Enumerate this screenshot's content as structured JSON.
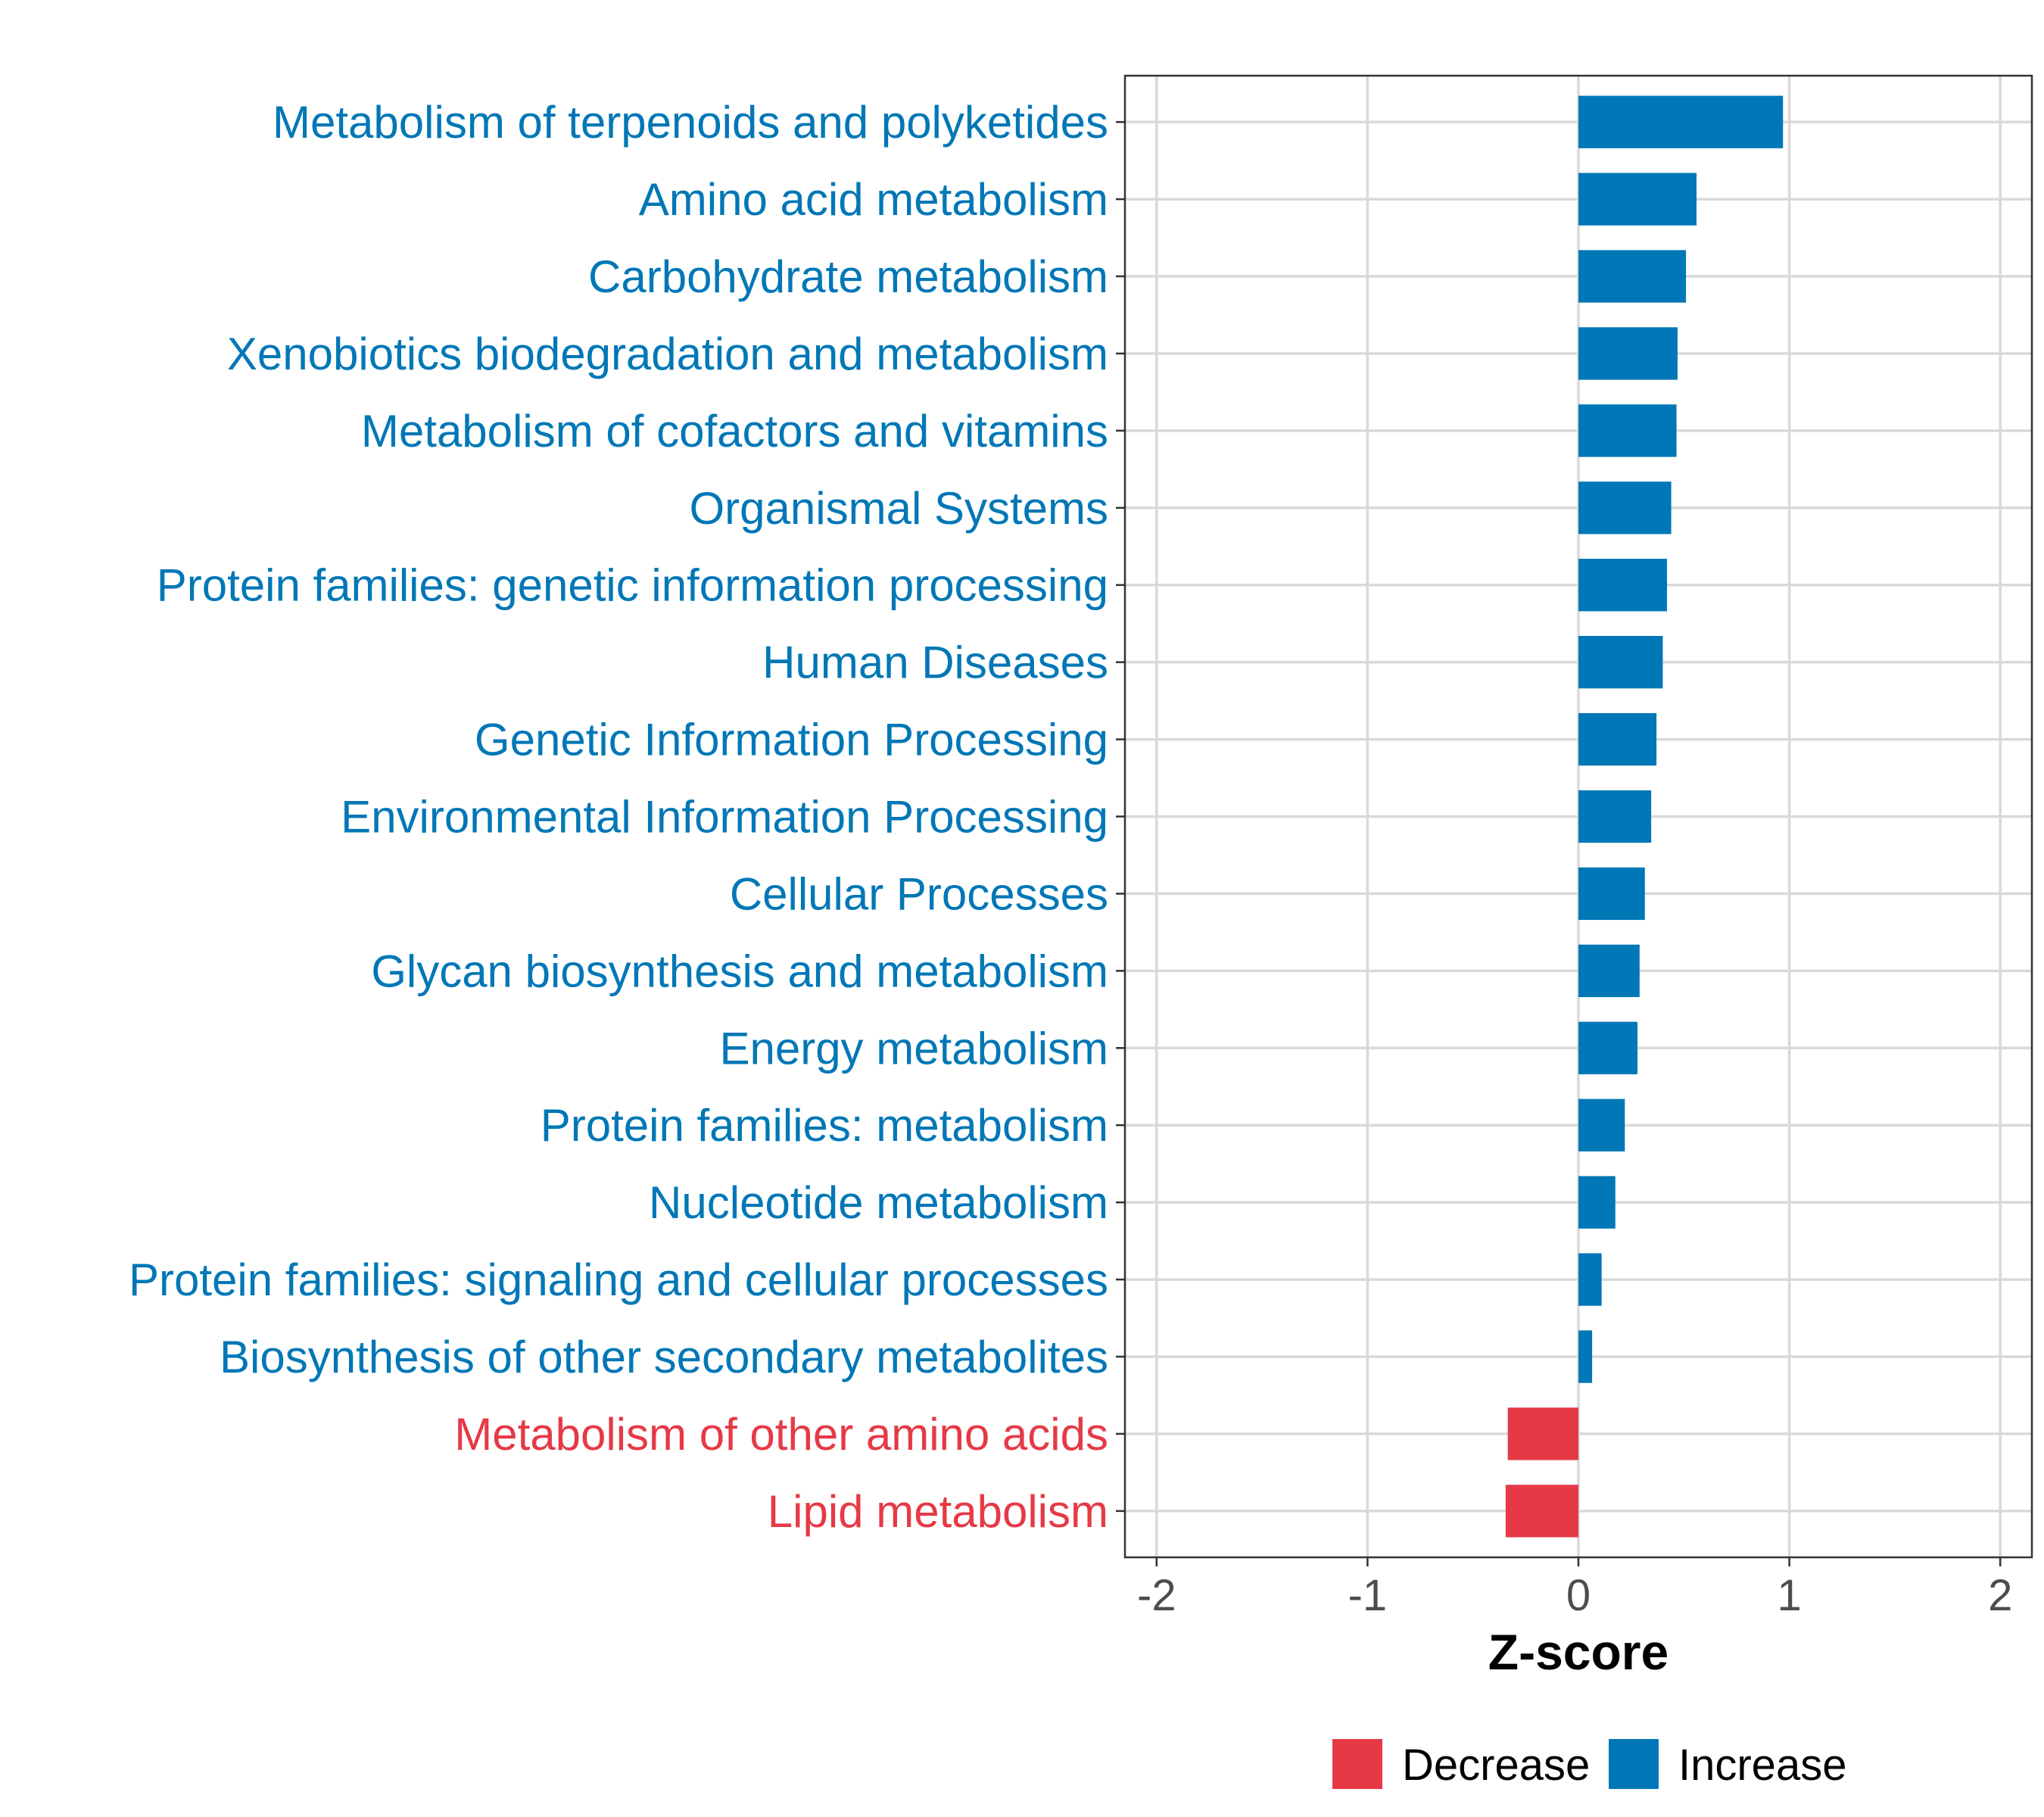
{
  "chart_data": {
    "type": "bar",
    "orientation": "horizontal",
    "xlabel": "Z-score",
    "ylabel": "",
    "xlim": [
      -2.15,
      2.15
    ],
    "xticks": [
      -2,
      -1,
      0,
      1,
      2
    ],
    "xtick_labels": [
      "-2",
      "-1",
      "0",
      "1",
      "2"
    ],
    "grid": true,
    "legend_position": "bottom",
    "colors": {
      "Decrease": "#E63946",
      "Increase": "#0077B6"
    },
    "categories": [
      "Metabolism of terpenoids and polyketides",
      "Amino acid metabolism",
      "Carbohydrate metabolism",
      "Xenobiotics biodegradation and metabolism",
      "Metabolism of cofactors and vitamins",
      "Organismal Systems",
      "Protein families: genetic information processing",
      "Human Diseases",
      "Genetic Information Processing",
      "Environmental Information Processing",
      "Cellular Processes",
      "Glycan biosynthesis and metabolism",
      "Energy metabolism",
      "Protein families: metabolism",
      "Nucleotide metabolism",
      "Protein families: signaling and cellular processes",
      "Biosynthesis of other secondary metabolites",
      "Metabolism of other amino acids",
      "Lipid metabolism"
    ],
    "values": [
      0.97,
      0.56,
      0.51,
      0.47,
      0.465,
      0.44,
      0.42,
      0.4,
      0.37,
      0.345,
      0.315,
      0.29,
      0.28,
      0.22,
      0.175,
      0.11,
      0.065,
      -0.335,
      -0.345
    ],
    "groups": [
      "Increase",
      "Increase",
      "Increase",
      "Increase",
      "Increase",
      "Increase",
      "Increase",
      "Increase",
      "Increase",
      "Increase",
      "Increase",
      "Increase",
      "Increase",
      "Increase",
      "Increase",
      "Increase",
      "Increase",
      "Decrease",
      "Decrease"
    ],
    "legend": [
      {
        "label": "Decrease"
      },
      {
        "label": "Increase"
      }
    ]
  }
}
